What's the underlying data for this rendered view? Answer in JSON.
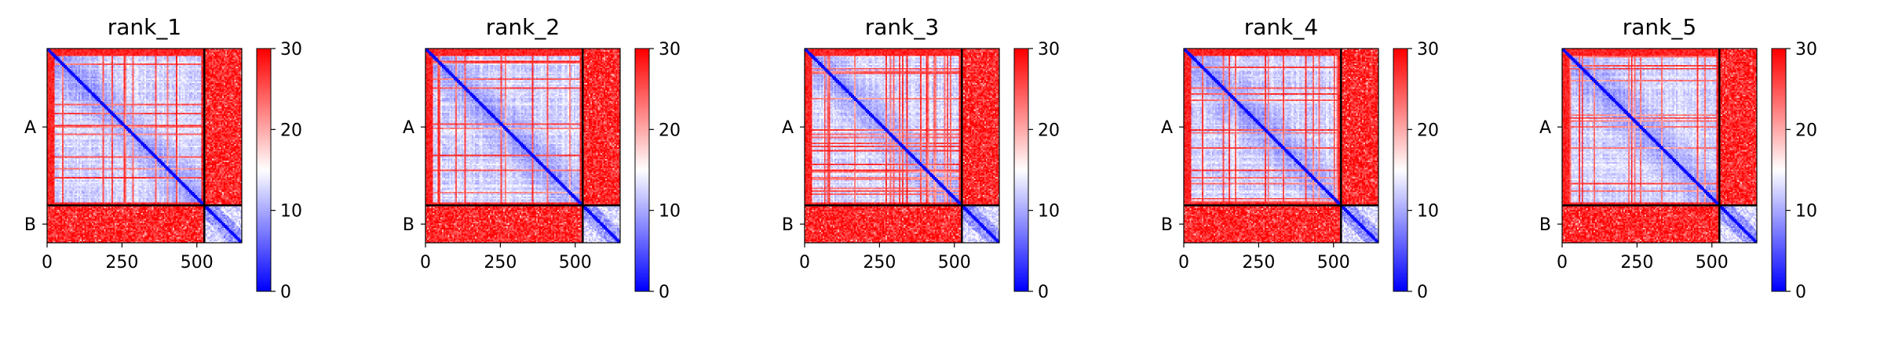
{
  "chart_data": [
    {
      "type": "heatmap",
      "title": "rank_1",
      "chains": [
        "A",
        "B"
      ],
      "chain_boundary": 525,
      "n_residues": 650,
      "xticks": [
        0,
        250,
        500
      ],
      "cbar_ticks": [
        0,
        10,
        20,
        30
      ],
      "vmin": 0,
      "vmax": 30,
      "colormap": [
        "#0000ff",
        "#ffffff",
        "#ff0000"
      ]
    },
    {
      "type": "heatmap",
      "title": "rank_2",
      "chains": [
        "A",
        "B"
      ],
      "chain_boundary": 525,
      "n_residues": 650,
      "xticks": [
        0,
        250,
        500
      ],
      "cbar_ticks": [
        0,
        10,
        20,
        30
      ],
      "vmin": 0,
      "vmax": 30,
      "colormap": [
        "#0000ff",
        "#ffffff",
        "#ff0000"
      ]
    },
    {
      "type": "heatmap",
      "title": "rank_3",
      "chains": [
        "A",
        "B"
      ],
      "chain_boundary": 525,
      "n_residues": 650,
      "xticks": [
        0,
        250,
        500
      ],
      "cbar_ticks": [
        0,
        10,
        20,
        30
      ],
      "vmin": 0,
      "vmax": 30,
      "colormap": [
        "#0000ff",
        "#ffffff",
        "#ff0000"
      ]
    },
    {
      "type": "heatmap",
      "title": "rank_4",
      "chains": [
        "A",
        "B"
      ],
      "chain_boundary": 525,
      "n_residues": 650,
      "xticks": [
        0,
        250,
        500
      ],
      "cbar_ticks": [
        0,
        10,
        20,
        30
      ],
      "vmin": 0,
      "vmax": 30,
      "colormap": [
        "#0000ff",
        "#ffffff",
        "#ff0000"
      ]
    },
    {
      "type": "heatmap",
      "title": "rank_5",
      "chains": [
        "A",
        "B"
      ],
      "chain_boundary": 525,
      "n_residues": 650,
      "xticks": [
        0,
        250,
        500
      ],
      "cbar_ticks": [
        0,
        10,
        20,
        30
      ],
      "vmin": 0,
      "vmax": 30,
      "colormap": [
        "#0000ff",
        "#ffffff",
        "#ff0000"
      ]
    }
  ]
}
